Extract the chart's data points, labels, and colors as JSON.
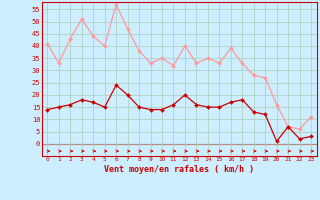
{
  "x": [
    0,
    1,
    2,
    3,
    4,
    5,
    6,
    7,
    8,
    9,
    10,
    11,
    12,
    13,
    14,
    15,
    16,
    17,
    18,
    19,
    20,
    21,
    22,
    23
  ],
  "wind_avg": [
    14,
    15,
    16,
    18,
    17,
    15,
    24,
    20,
    15,
    14,
    14,
    16,
    20,
    16,
    15,
    15,
    17,
    18,
    13,
    12,
    1,
    7,
    2,
    3
  ],
  "wind_gust": [
    41,
    33,
    43,
    51,
    44,
    40,
    57,
    47,
    38,
    33,
    35,
    32,
    40,
    33,
    35,
    33,
    39,
    33,
    28,
    27,
    16,
    7,
    6,
    11
  ],
  "avg_color": "#cc0000",
  "gust_color": "#ff9999",
  "bg_color": "#cceeff",
  "grid_color": "#aaccbb",
  "xlabel": "Vent moyen/en rafales ( km/h )",
  "yticks": [
    0,
    5,
    10,
    15,
    20,
    25,
    30,
    35,
    40,
    45,
    50,
    55
  ],
  "ylim": [
    -5,
    58
  ],
  "xlim": [
    -0.5,
    23.5
  ]
}
